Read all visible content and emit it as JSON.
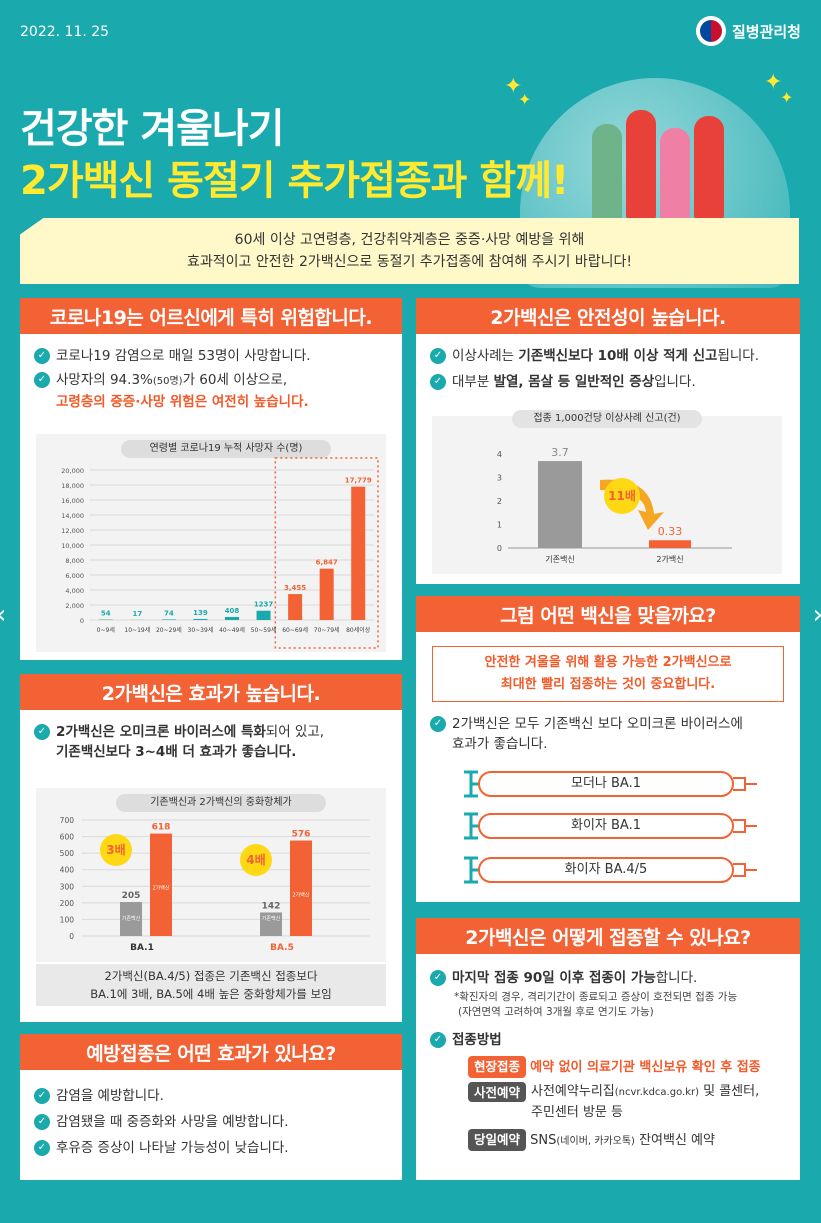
{
  "header": {
    "date": "2022. 11. 25",
    "brand": "질병관리청"
  },
  "title": {
    "line1": "건강한 겨울나기",
    "line2": "2가백신 동절기 추가접종과 함께!"
  },
  "intro": {
    "line1": "60세 이상 고연령층, 건강취약계층은 중증·사망 예방을 위해",
    "line2": "효과적이고 안전한 2가백신으로 동절기 추가접종에 참여해 주시기 바랍니다!"
  },
  "sec1": {
    "title": "코로나19는 어르신에게 특히 위험합니다.",
    "item1": "코로나19 감염으로 매일 53명이 사망합니다.",
    "item2a": "사망자의 94.3%",
    "item2b": "(50명)",
    "item2c": "가 60세 이상으로,",
    "item2d": "고령층의 중증·사망 위험은 여전히 높습니다."
  },
  "sec2": {
    "title": "2가백신은 효과가 높습니다.",
    "item1a": "2가백신은 오미크론 바이러스에 특화",
    "item1b": "되어 있고,",
    "item1c": "기존백신보다 3~4배 더 효과가 좋습니다.",
    "note1": "2가백신(BA.4/5) 접종은 기존백신 접종보다",
    "note2": "BA.1에 3배, BA.5에 4배 높은 중화항체가를 보임"
  },
  "sec3": {
    "title": "예방접종은 어떤 효과가 있나요?",
    "items": [
      "감염을 예방합니다.",
      "감염됐을 때 중증화와 사망을 예방합니다.",
      "후유증 증상이 나타날 가능성이 낮습니다."
    ]
  },
  "sec4": {
    "title": "2가백신은 안전성이 높습니다.",
    "item1a": "이상사례는 ",
    "item1b": "기존백신보다 10배 이상 적게 신고",
    "item1c": "됩니다.",
    "item2a": "대부분 ",
    "item2b": "발열, 몸살 등 일반적인 증상",
    "item2c": "입니다."
  },
  "sec5": {
    "title": "그럼 어떤 백신을 맞을까요?",
    "box1": "안전한 겨울을 위해 활용 가능한 2가백신으로",
    "box2": "최대한 빨리 접종하는 것이 중요합니다.",
    "item1": "2가백신은 모두 기존백신 보다 오미크론 바이러스에",
    "item2": "효과가 좋습니다.",
    "vaccines": [
      "모더나 BA.1",
      "화이자 BA.1",
      "화이자 BA.4/5"
    ]
  },
  "sec6": {
    "title": "2가백신은 어떻게 접종할 수 있나요?",
    "item1a": "마지막 접종 90일 이후 접종이 가능",
    "item1b": "합니다.",
    "note1": "*확진자의 경우, 격리기간이 종료되고 증상이 호전되면 접종 가능",
    "note2": "(자연면역 고려하여 3개월 후로 연기도 가능)",
    "methods_title": "접종방법",
    "m1_tag": "현장접종",
    "m1_text": "예약 없이 의료기관 백신보유 확인 후 접종",
    "m2_tag": "사전예약",
    "m2_text1": "사전예약누리집",
    "m2_text2": "(ncvr.kdca.go.kr)",
    "m2_text3": " 및 콜센터,",
    "m2_text4": "주민센터 방문 등",
    "m3_tag": "당일예약",
    "m3_text1": "SNS",
    "m3_text2": "(네이버, 카카오톡)",
    "m3_text3": " 잔여백신 예약"
  },
  "chart_data": [
    {
      "type": "bar",
      "title": "연령별 코로나19 누적 사망자 수(명)",
      "categories": [
        "0~9세",
        "10~19세",
        "20~29세",
        "30~39세",
        "40~49세",
        "50~59세",
        "60~69세",
        "70~79세",
        "80세이상"
      ],
      "values": [
        54,
        17,
        74,
        139,
        408,
        1237,
        3455,
        6847,
        17779
      ],
      "value_labels": [
        "54",
        "17",
        "74",
        "139",
        "408",
        "1237",
        "3,455",
        "6,847",
        "17,779"
      ],
      "yticks": [
        "0",
        "2,000",
        "4,000",
        "6,000",
        "8,000",
        "10,000",
        "12,000",
        "14,000",
        "16,000",
        "18,000",
        "20,000"
      ],
      "ylim": [
        0,
        20000
      ],
      "colors": {
        "low": "#1aa9ad",
        "high": "#f26235"
      }
    },
    {
      "type": "bar",
      "title": "기존백신과 2가백신의 중화항체가",
      "categories": [
        "BA.1",
        "BA.5"
      ],
      "series": [
        {
          "name": "기존백신",
          "values": [
            205,
            142
          ]
        },
        {
          "name": "2가백신",
          "values": [
            618,
            576
          ]
        }
      ],
      "badges": [
        "3배",
        "4배"
      ],
      "yticks": [
        "0",
        "100",
        "200",
        "300",
        "400",
        "500",
        "600",
        "700"
      ],
      "ylim": [
        0,
        700
      ]
    },
    {
      "type": "bar",
      "title": "접종 1,000건당 이상사례 신고(건)",
      "categories": [
        "기존백신",
        "2가백신"
      ],
      "values": [
        3.7,
        0.33
      ],
      "value_labels": [
        "3.7",
        "0.33"
      ],
      "badge": "11배",
      "yticks": [
        "0",
        "1",
        "2",
        "3",
        "4"
      ],
      "ylim": [
        0,
        4
      ]
    }
  ]
}
